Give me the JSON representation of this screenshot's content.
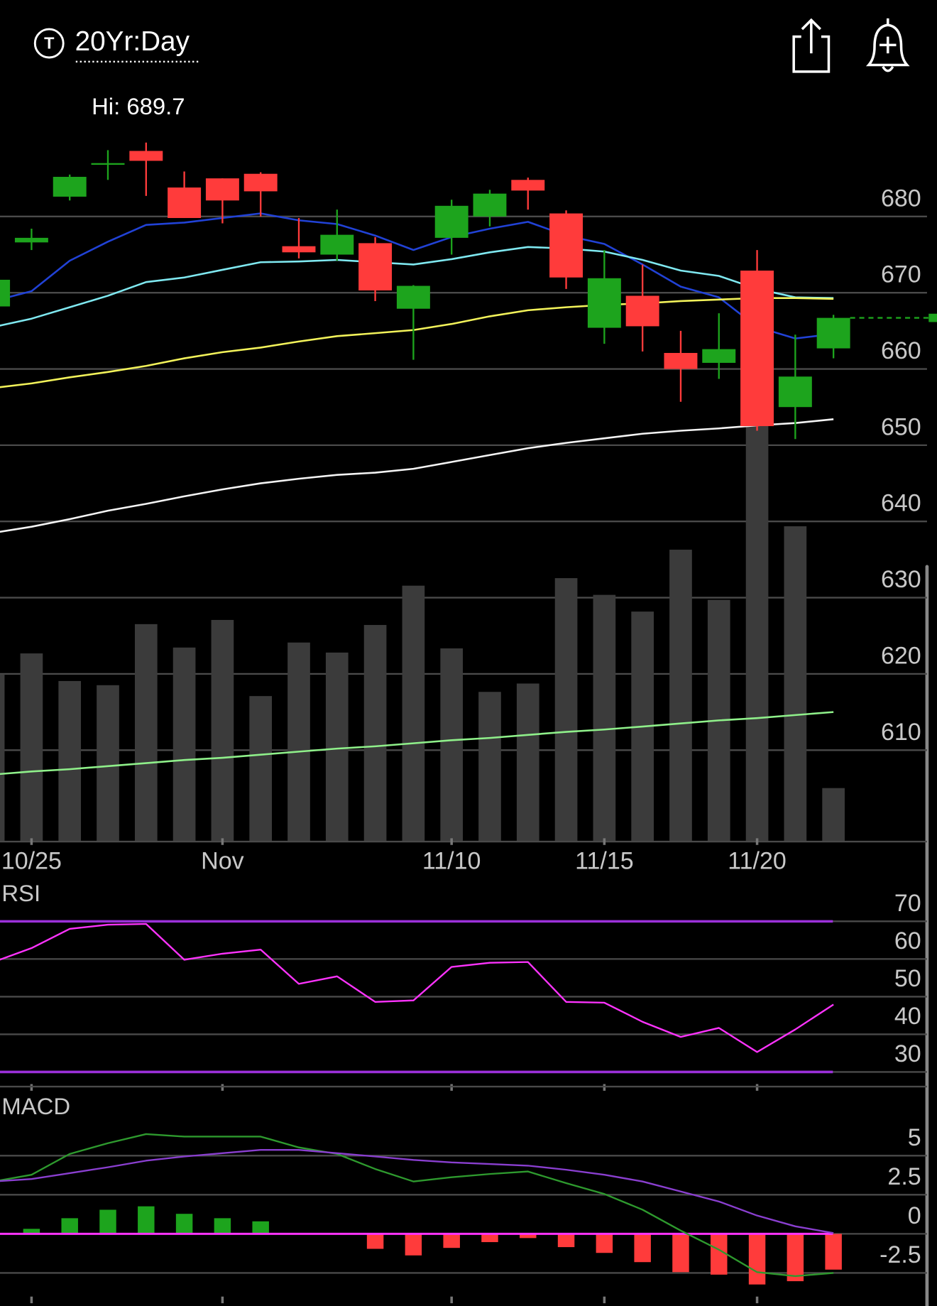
{
  "header": {
    "title": "20Yr:Day"
  },
  "chart_data": [
    {
      "type": "candlestick",
      "hi_label": "Hi: 689.7",
      "categories": [
        null,
        "10/25",
        null,
        null,
        null,
        null,
        "Nov",
        null,
        null,
        null,
        null,
        null,
        "11/10",
        null,
        null,
        null,
        "11/15",
        null,
        null,
        null,
        "11/20",
        null,
        null
      ],
      "open": [
        668.2,
        676.6,
        682.6,
        686.8,
        688.6,
        683.8,
        685.0,
        685.6,
        676.1,
        675.0,
        676.5,
        667.9,
        677.2,
        680.0,
        684.8,
        680.4,
        665.4,
        669.6,
        662.1,
        660.8,
        672.9,
        655.0,
        662.7
      ],
      "high": [
        672.0,
        678.4,
        685.5,
        688.7,
        689.7,
        685.9,
        685.0,
        685.8,
        679.8,
        680.9,
        677.3,
        671.0,
        682.2,
        683.5,
        685.1,
        680.8,
        675.6,
        673.7,
        665.0,
        667.3,
        675.6,
        664.5,
        667.1
      ],
      "low": [
        668.0,
        675.6,
        682.1,
        684.8,
        682.7,
        679.8,
        679.1,
        680.0,
        674.5,
        674.2,
        668.9,
        661.2,
        675.0,
        678.7,
        680.9,
        670.5,
        663.3,
        662.3,
        655.7,
        658.7,
        651.9,
        650.8,
        661.4
      ],
      "close": [
        671.7,
        677.2,
        685.2,
        687.0,
        687.3,
        679.8,
        682.1,
        683.3,
        675.3,
        677.6,
        670.3,
        670.9,
        681.4,
        683.0,
        683.4,
        672.0,
        671.9,
        665.6,
        660.0,
        662.6,
        652.5,
        659.0,
        666.7
      ],
      "up_color": "#1da41d",
      "down_color": "#ff3b3b",
      "moving_averages": [
        {
          "color": "#2142d6",
          "values": [
            668.9,
            670.2,
            674.2,
            676.7,
            678.9,
            679.2,
            679.8,
            680.4,
            679.5,
            679.0,
            677.5,
            675.6,
            677.3,
            678.4,
            679.3,
            677.5,
            676.4,
            673.7,
            670.8,
            669.4,
            665.5,
            664.0,
            664.6
          ]
        },
        {
          "color": "#7fe8f0",
          "values": [
            665.5,
            666.6,
            668.1,
            669.6,
            671.4,
            672.0,
            673.0,
            674.0,
            674.1,
            674.3,
            674.0,
            673.7,
            674.4,
            675.3,
            676.0,
            675.8,
            675.4,
            674.3,
            672.9,
            672.2,
            670.5,
            669.4,
            669.3
          ]
        },
        {
          "color": "#f2f25a",
          "values": [
            657.5,
            658.1,
            658.9,
            659.6,
            660.4,
            661.4,
            662.2,
            662.8,
            663.6,
            664.3,
            664.7,
            665.1,
            665.9,
            666.9,
            667.7,
            668.1,
            668.4,
            668.6,
            668.9,
            669.1,
            669.3,
            669.3,
            669.2
          ]
        },
        {
          "color": "#f4f4f4",
          "values": [
            638.5,
            639.3,
            640.3,
            641.4,
            642.3,
            643.3,
            644.2,
            645.0,
            645.6,
            646.1,
            646.4,
            646.9,
            647.8,
            648.7,
            649.6,
            650.3,
            650.9,
            651.5,
            651.9,
            652.2,
            652.6,
            652.9,
            653.4
          ]
        },
        {
          "color": "#8ff08a",
          "values": [
            606.8,
            607.2,
            607.5,
            607.9,
            608.3,
            608.7,
            609.0,
            609.4,
            609.8,
            610.2,
            610.5,
            610.9,
            611.3,
            611.6,
            612.0,
            612.4,
            612.7,
            613.1,
            613.5,
            613.9,
            614.2,
            614.6,
            615.0
          ]
        }
      ],
      "volume": {
        "color": "#3b3b3b",
        "values": [
          200,
          225,
          192,
          187,
          260,
          232,
          265,
          174,
          238,
          226,
          259,
          306,
          231,
          179,
          189,
          315,
          295,
          275,
          349,
          289,
          523,
          377,
          64
        ]
      },
      "ylim": [
        598,
        692
      ],
      "yticks": [
        610,
        620,
        630,
        640,
        650,
        660,
        670,
        680
      ],
      "grid": true
    },
    {
      "type": "line",
      "title": "RSI",
      "series": [
        {
          "color": "#ff33ff",
          "values": [
            59.2,
            62.9,
            68.0,
            69.1,
            69.3,
            59.8,
            61.4,
            62.5,
            53.4,
            55.4,
            48.6,
            49.0,
            57.9,
            59.0,
            59.2,
            48.6,
            48.4,
            43.3,
            39.3,
            41.7,
            35.3,
            41.3,
            47.9
          ]
        }
      ],
      "threshold_lines": [
        30,
        70
      ],
      "threshold_color": "#9b30d9",
      "ylim": [
        27,
        79
      ],
      "yticks": [
        30,
        40,
        50,
        60,
        70
      ],
      "grid": true
    },
    {
      "type": "macd",
      "title": "MACD",
      "series": [
        {
          "color": "#2e9a2e",
          "values": [
            3.35,
            3.78,
            5.11,
            5.8,
            6.38,
            6.22,
            6.22,
            6.22,
            5.53,
            5.11,
            4.15,
            3.35,
            3.62,
            3.83,
            3.99,
            3.24,
            2.55,
            1.54,
            0.21,
            -1.01,
            -2.45,
            -2.71,
            -2.5
          ]
        },
        {
          "color": "#8a3fd0",
          "values": [
            3.35,
            3.51,
            3.88,
            4.26,
            4.68,
            4.95,
            5.16,
            5.37,
            5.37,
            5.16,
            4.95,
            4.73,
            4.57,
            4.47,
            4.36,
            4.1,
            3.78,
            3.35,
            2.71,
            2.07,
            1.17,
            0.48,
            0.05
          ]
        }
      ],
      "histogram": {
        "up_color": "#1da41d",
        "down_color": "#ff3b3b",
        "values": [
          0,
          0.32,
          1.0,
          1.54,
          1.76,
          1.28,
          1.0,
          0.8,
          0.05,
          -0.05,
          -0.96,
          -1.38,
          -0.9,
          -0.53,
          -0.27,
          -0.85,
          -1.22,
          -1.81,
          -2.45,
          -2.61,
          -3.24,
          -3.03,
          -2.29
        ]
      },
      "zero_color": "#ff33ff",
      "ylim": [
        -4.6,
        9.1
      ],
      "yticks": [
        -2.5,
        0,
        2.5,
        5
      ],
      "grid": true
    }
  ]
}
